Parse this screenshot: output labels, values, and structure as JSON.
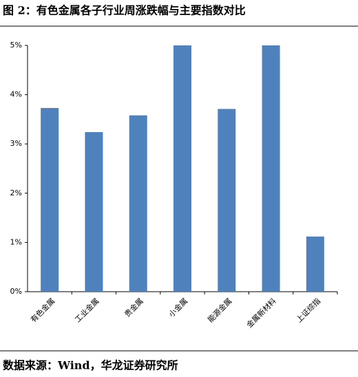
{
  "chart_data": {
    "type": "bar",
    "title": "图 2：有色金属各子行业周涨跌幅与主要指数对比",
    "source": "数据来源：Wind，华龙证券研究所",
    "categories": [
      "有色金属",
      "工业金属",
      "贵金属",
      "小金属",
      "能源金属",
      "金属新材料",
      "上证综指"
    ],
    "values": [
      3.73,
      3.24,
      3.58,
      5.0,
      3.71,
      5.0,
      1.12
    ],
    "color": "#4f81bd",
    "ylim": [
      0,
      5
    ],
    "yticks": [
      {
        "value": 0,
        "label": "0%"
      },
      {
        "value": 1,
        "label": "1%"
      },
      {
        "value": 2,
        "label": "2%"
      },
      {
        "value": 3,
        "label": "3%"
      },
      {
        "value": 4,
        "label": "4%"
      },
      {
        "value": 5,
        "label": "5%"
      }
    ],
    "grid": false
  }
}
